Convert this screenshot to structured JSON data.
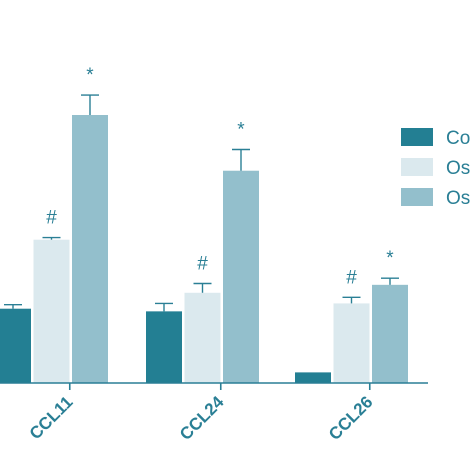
{
  "chart_data": {
    "type": "bar",
    "title": "",
    "xlabel": "",
    "ylabel": "",
    "categories": [
      "CCL11",
      "CCL24",
      "CCL26"
    ],
    "ylim": [
      0,
      100
    ],
    "series": [
      {
        "name": "Co",
        "color": "#237f93",
        "values": [
          28,
          27,
          4
        ],
        "errors": [
          1.5,
          3,
          0
        ]
      },
      {
        "name": "Os",
        "color": "#dbe9ee",
        "values": [
          54,
          34,
          30
        ],
        "errors": [
          0.8,
          3.5,
          2.3
        ]
      },
      {
        "name": "Os",
        "color": "#93bfcc",
        "values": [
          101,
          80,
          37
        ],
        "errors": [
          7.5,
          8,
          2.5
        ]
      }
    ],
    "annotations": [
      {
        "category": "CCL11",
        "series": 1,
        "text": "#"
      },
      {
        "category": "CCL11",
        "series": 2,
        "text": "*"
      },
      {
        "category": "CCL24",
        "series": 1,
        "text": "#"
      },
      {
        "category": "CCL24",
        "series": 2,
        "text": "*"
      },
      {
        "category": "CCL26",
        "series": 1,
        "text": "#"
      },
      {
        "category": "CCL26",
        "series": 2,
        "text": "*"
      }
    ],
    "legend_position": "right",
    "grid": false
  }
}
